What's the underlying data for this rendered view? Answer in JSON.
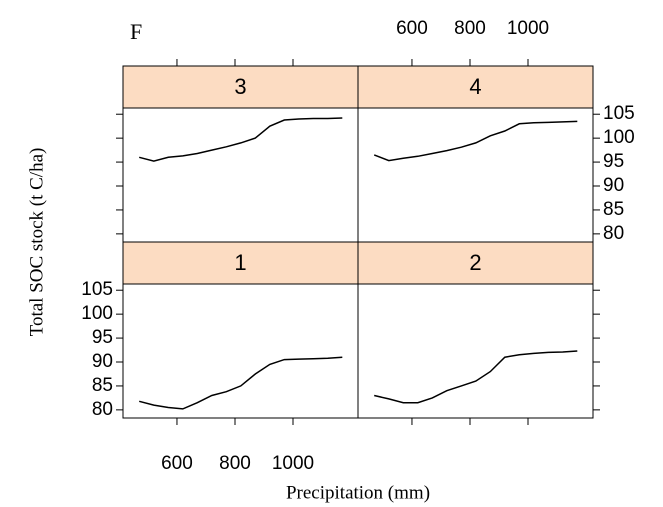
{
  "chart_data": {
    "type": "line",
    "panel_label": "F",
    "xlabel": "Precipitation (mm)",
    "ylabel": "Total  SOC stock (t C/ha)",
    "x": [
      470,
      520,
      570,
      620,
      670,
      720,
      770,
      820,
      870,
      920,
      970,
      1020,
      1070,
      1120,
      1170
    ],
    "series": [
      {
        "name": "1",
        "color": "#000000",
        "values": [
          81.8,
          81,
          80.5,
          80.2,
          81.5,
          83,
          83.8,
          85,
          87.5,
          89.5,
          90.5,
          90.6,
          90.7,
          90.8,
          91
        ]
      },
      {
        "name": "2",
        "color": "#000000",
        "values": [
          83,
          82.3,
          81.5,
          81.5,
          82.5,
          84,
          85,
          86,
          88,
          91,
          91.5,
          91.8,
          92,
          92.1,
          92.3
        ]
      },
      {
        "name": "3",
        "color": "#000000",
        "values": [
          96,
          95.2,
          96,
          96.3,
          96.8,
          97.5,
          98.2,
          99,
          100,
          102.5,
          103.8,
          104,
          104.1,
          104.1,
          104.2
        ]
      },
      {
        "name": "4",
        "color": "#000000",
        "values": [
          96.5,
          95.3,
          95.8,
          96.2,
          96.8,
          97.4,
          98.1,
          99,
          100.5,
          101.5,
          103,
          103.2,
          103.3,
          103.4,
          103.5
        ]
      }
    ],
    "xlim": [
      414,
      1224
    ],
    "xticks": [
      600,
      800,
      1000
    ],
    "ylim": [
      78.3,
      106.3
    ],
    "yticks": [
      80,
      85,
      90,
      95,
      100,
      105
    ],
    "strip_color": "#fcdcc2"
  }
}
